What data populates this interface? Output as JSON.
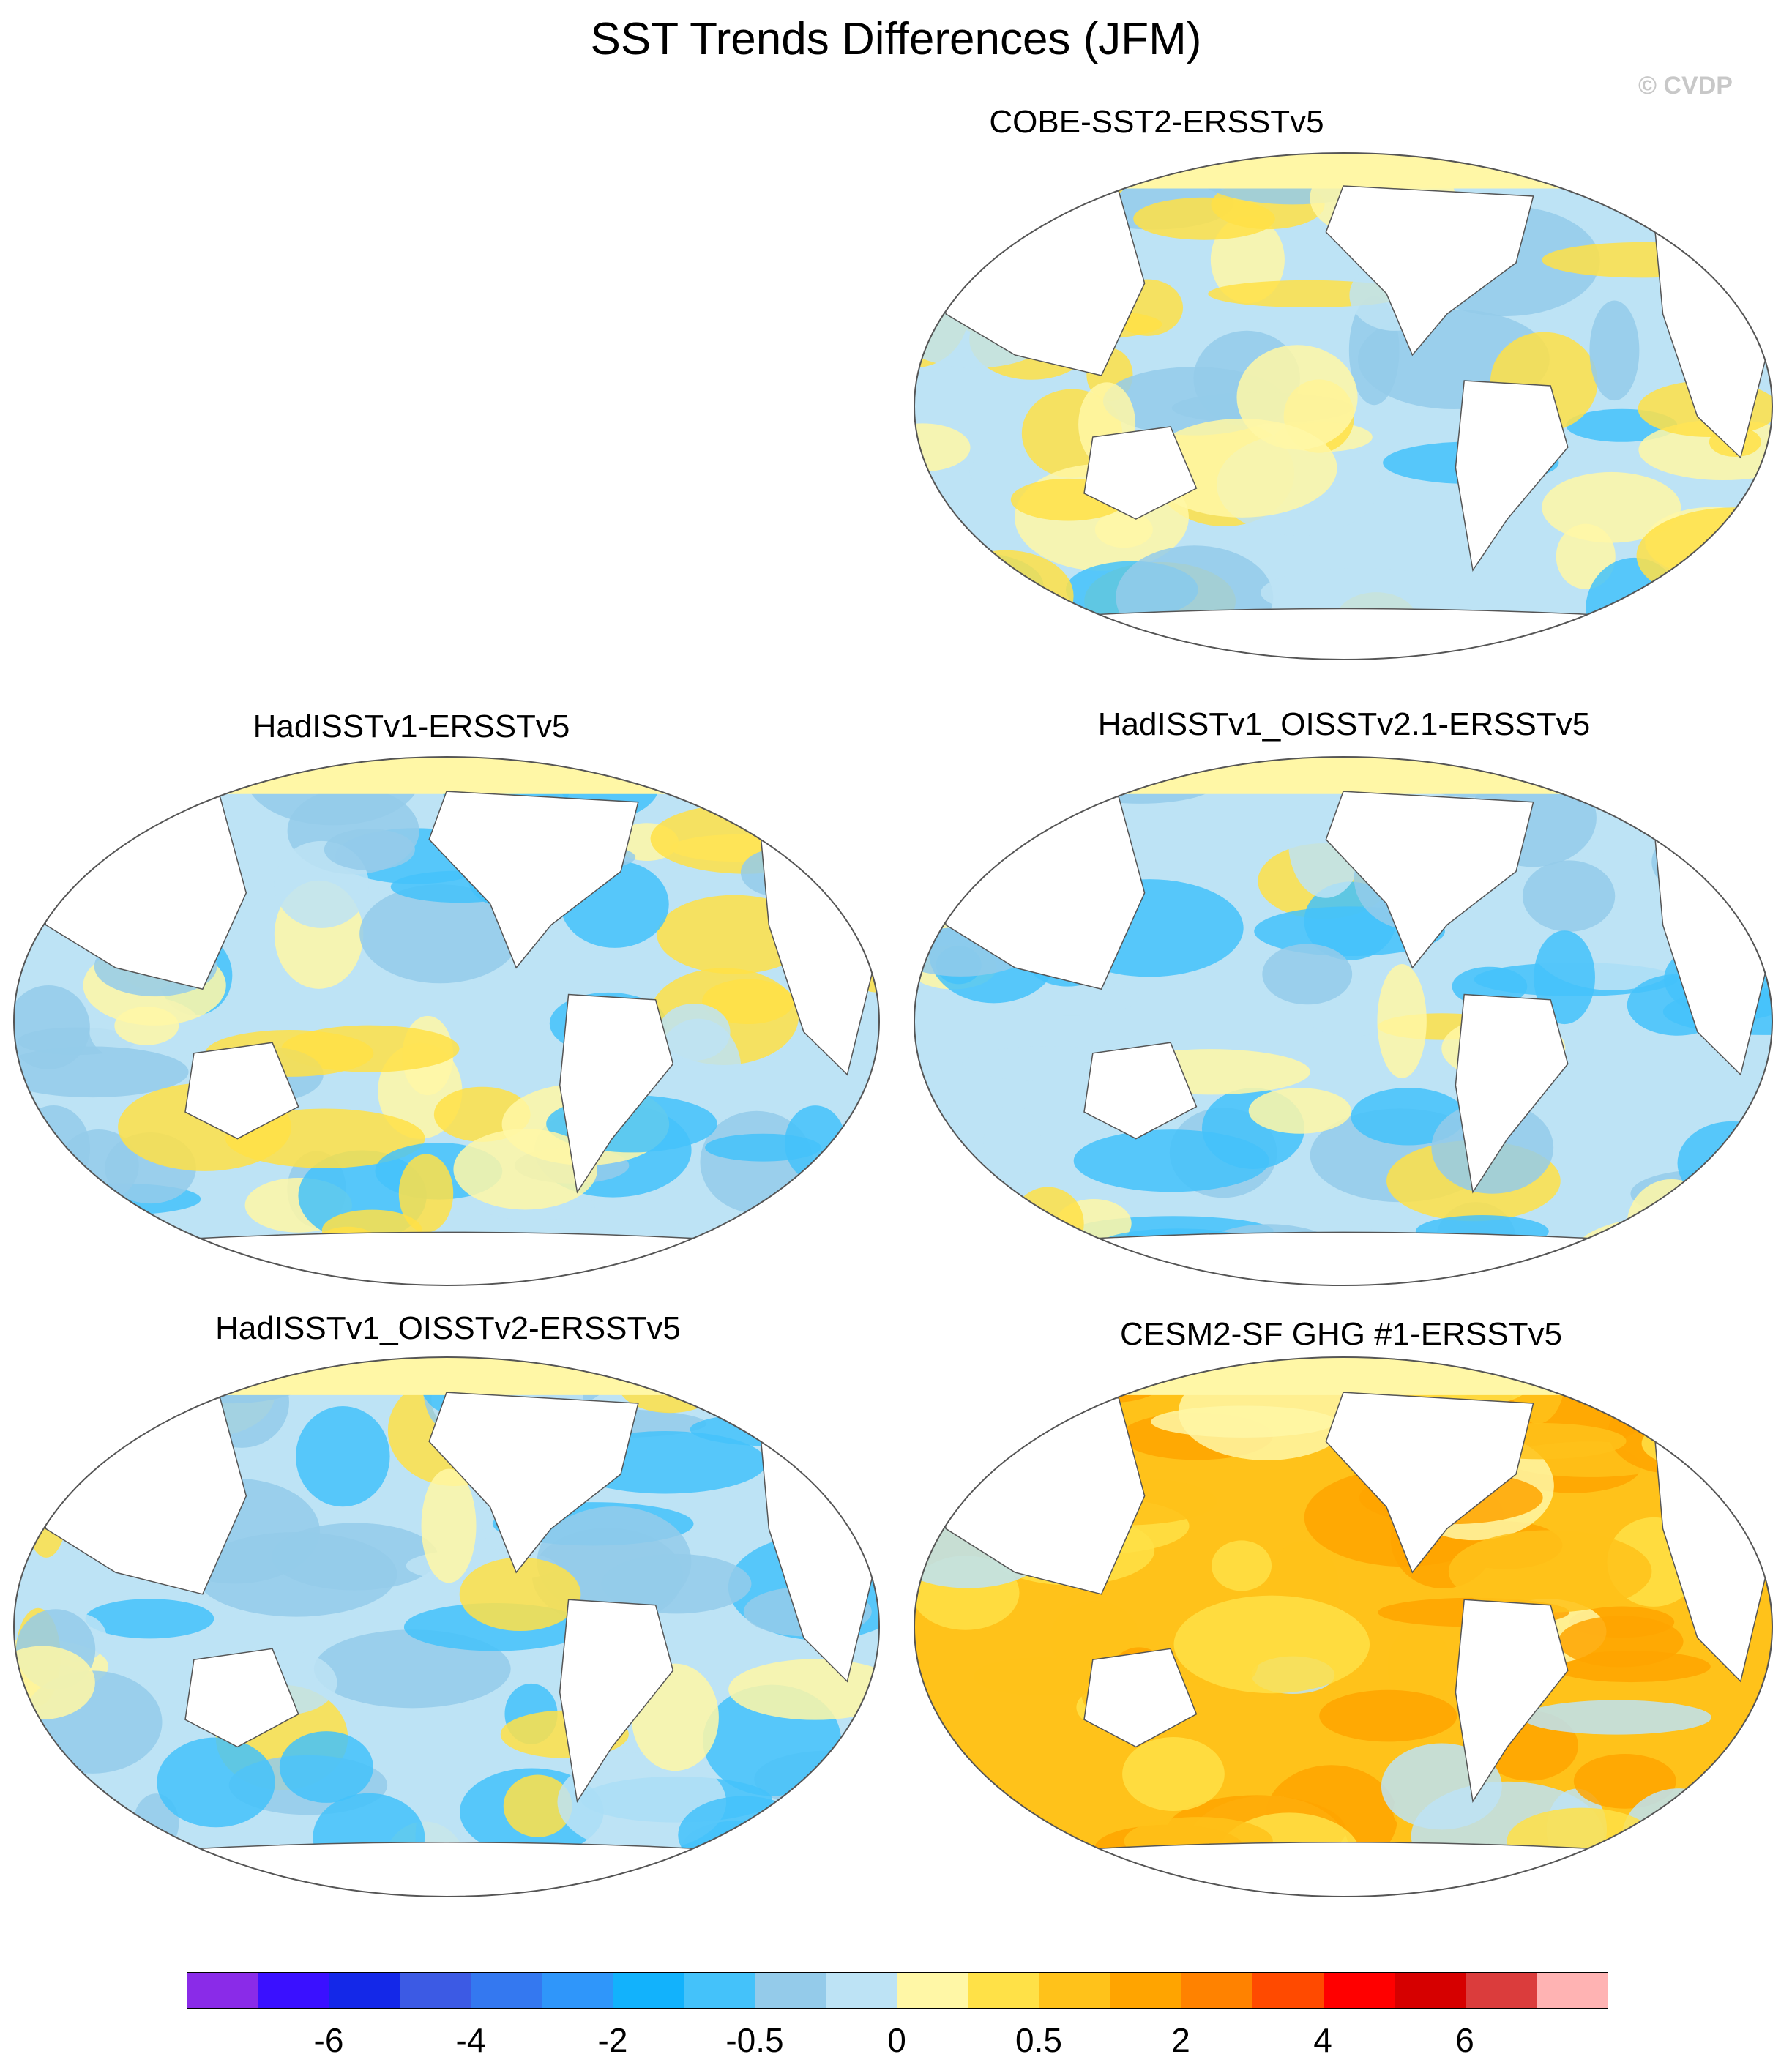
{
  "title": "SST Trends Differences (JFM)",
  "credit": "© CVDP",
  "panels": [
    {
      "id": "cobe",
      "title": "COBE-SST2-ERSSTv5",
      "pattern": "mixed"
    },
    {
      "id": "hadisst",
      "title": "HadISSTv1-ERSSTv5",
      "pattern": "cool"
    },
    {
      "id": "hadisst_oi21",
      "title": "HadISSTv1_OISSTv2.1-ERSSTv5",
      "pattern": "cool"
    },
    {
      "id": "hadisst_oi2",
      "title": "HadISSTv1_OISSTv2-ERSSTv5",
      "pattern": "cool"
    },
    {
      "id": "cesm2",
      "title": "CESM2-SF GHG #1-ERSSTv5",
      "pattern": "warm"
    }
  ],
  "colorbar": {
    "colors": [
      "#8a2be8",
      "#3a10ff",
      "#1428e8",
      "#3c5ae4",
      "#3478f0",
      "#2f96fa",
      "#12b2fc",
      "#44c2fa",
      "#94cbea",
      "#bde3f5",
      "#fff7a6",
      "#ffe147",
      "#ffc21a",
      "#ffa400",
      "#ff8200",
      "#ff4a00",
      "#ff0000",
      "#d60000",
      "#db3c3c",
      "#ffb3b3"
    ],
    "labels": [
      "-6",
      "-4",
      "-2",
      "-0.5",
      "0",
      "0.5",
      "2",
      "4",
      "6"
    ]
  }
}
